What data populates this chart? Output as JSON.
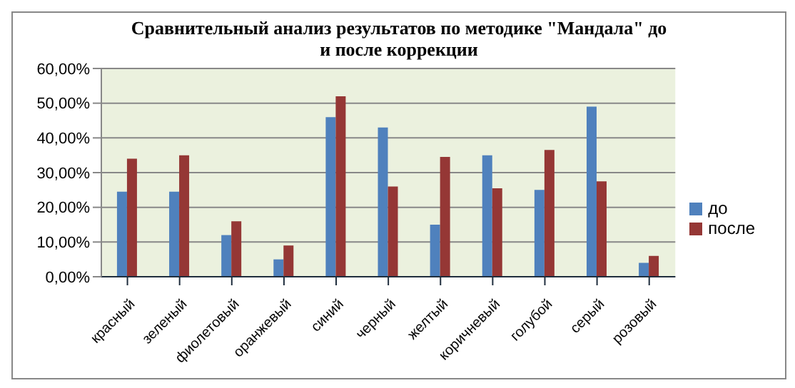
{
  "chart_data": {
    "type": "bar",
    "title": "Сравнительный анализ результатов по методике \"Мандала\" до и после коррекции",
    "categories": [
      "красный",
      "зеленый",
      "фиолетовый",
      "оранжевый",
      "синий",
      "черный",
      "желтый",
      "коричневый",
      "голубой",
      "серый",
      "розовый"
    ],
    "series": [
      {
        "name": "до",
        "color": "#4f81bd",
        "values": [
          24.5,
          24.5,
          12,
          5,
          46,
          43,
          15,
          35,
          25,
          49,
          4
        ]
      },
      {
        "name": "после",
        "color": "#953735",
        "values": [
          34,
          35,
          16,
          9,
          52,
          26,
          34.5,
          25.5,
          36.5,
          27.5,
          6
        ]
      }
    ],
    "ylim": [
      0,
      60
    ],
    "yticks": [
      {
        "value": 0,
        "label": "0,00%"
      },
      {
        "value": 10,
        "label": "10,00%"
      },
      {
        "value": 20,
        "label": "20,00%"
      },
      {
        "value": 30,
        "label": "30,00%"
      },
      {
        "value": 40,
        "label": "40,00%"
      },
      {
        "value": 50,
        "label": "50,00%"
      },
      {
        "value": 60,
        "label": "60,00%"
      }
    ],
    "grid": "y",
    "legend": "right"
  }
}
